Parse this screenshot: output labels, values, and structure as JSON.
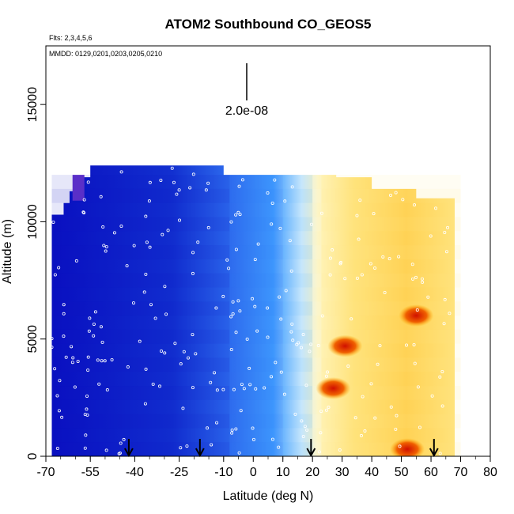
{
  "chart_data": {
    "type": "heatmap",
    "title": "ATOM2 Southbound CO_GEOS5",
    "subtitle_flights": "Flts: 2,3,4,5,6",
    "subtitle_dates": "MMDD: 0129,0201,0203,0205,0210",
    "xlabel": "Latitude (deg N)",
    "ylabel": "Altitude (m)",
    "xlim": [
      -70,
      80
    ],
    "ylim": [
      0,
      17500
    ],
    "x_tick_labels": [
      "-70",
      "-55",
      "-40",
      "-25",
      "-10",
      "0",
      "10",
      "20",
      "30",
      "40",
      "50",
      "60",
      "70",
      "80"
    ],
    "y_tick_labels": [
      "0",
      "5000",
      "10000",
      "15000"
    ],
    "scale_bar_label": "2.0e-08",
    "colors": {
      "low": "#0a10c0",
      "mid_low": "#2f6ff0",
      "mid": "#3fa8ff",
      "neutral": "#f0f8ff",
      "mid_high": "#ffe98a",
      "high": "#ffb000",
      "peak": "#d01000"
    },
    "arrow_latitudes": [
      -42,
      -18,
      19.5,
      61
    ],
    "profile_top_altitude_m": [
      {
        "lat": -68,
        "alt": 10300
      },
      {
        "lat": -64,
        "alt": 10800
      },
      {
        "lat": -62,
        "alt": 11300
      },
      {
        "lat": -59,
        "alt": 11900
      },
      {
        "lat": -55,
        "alt": 12400
      },
      {
        "lat": -40,
        "alt": 12400
      },
      {
        "lat": -10,
        "alt": 12000
      },
      {
        "lat": 28,
        "alt": 11900
      },
      {
        "lat": 40,
        "alt": 11400
      },
      {
        "lat": 55,
        "alt": 11000
      },
      {
        "lat": 68,
        "alt": 10300
      }
    ],
    "co_field_bands": [
      {
        "lat_from": -68,
        "lat_to": -8,
        "level": "low"
      },
      {
        "lat_from": -8,
        "lat_to": 10,
        "level": "mid_low"
      },
      {
        "lat_from": 10,
        "lat_to": 20,
        "level": "mid"
      },
      {
        "lat_from": 20,
        "lat_to": 23,
        "level": "neutral"
      },
      {
        "lat_from": 23,
        "lat_to": 70,
        "level": "mid_high"
      }
    ],
    "hotspots": [
      {
        "lat": 31,
        "alt": 4700,
        "level": "peak"
      },
      {
        "lat": 27,
        "alt": 2900,
        "level": "peak"
      },
      {
        "lat": 55,
        "alt": 6000,
        "level": "peak"
      },
      {
        "lat": 52,
        "alt": 300,
        "level": "peak"
      }
    ]
  }
}
